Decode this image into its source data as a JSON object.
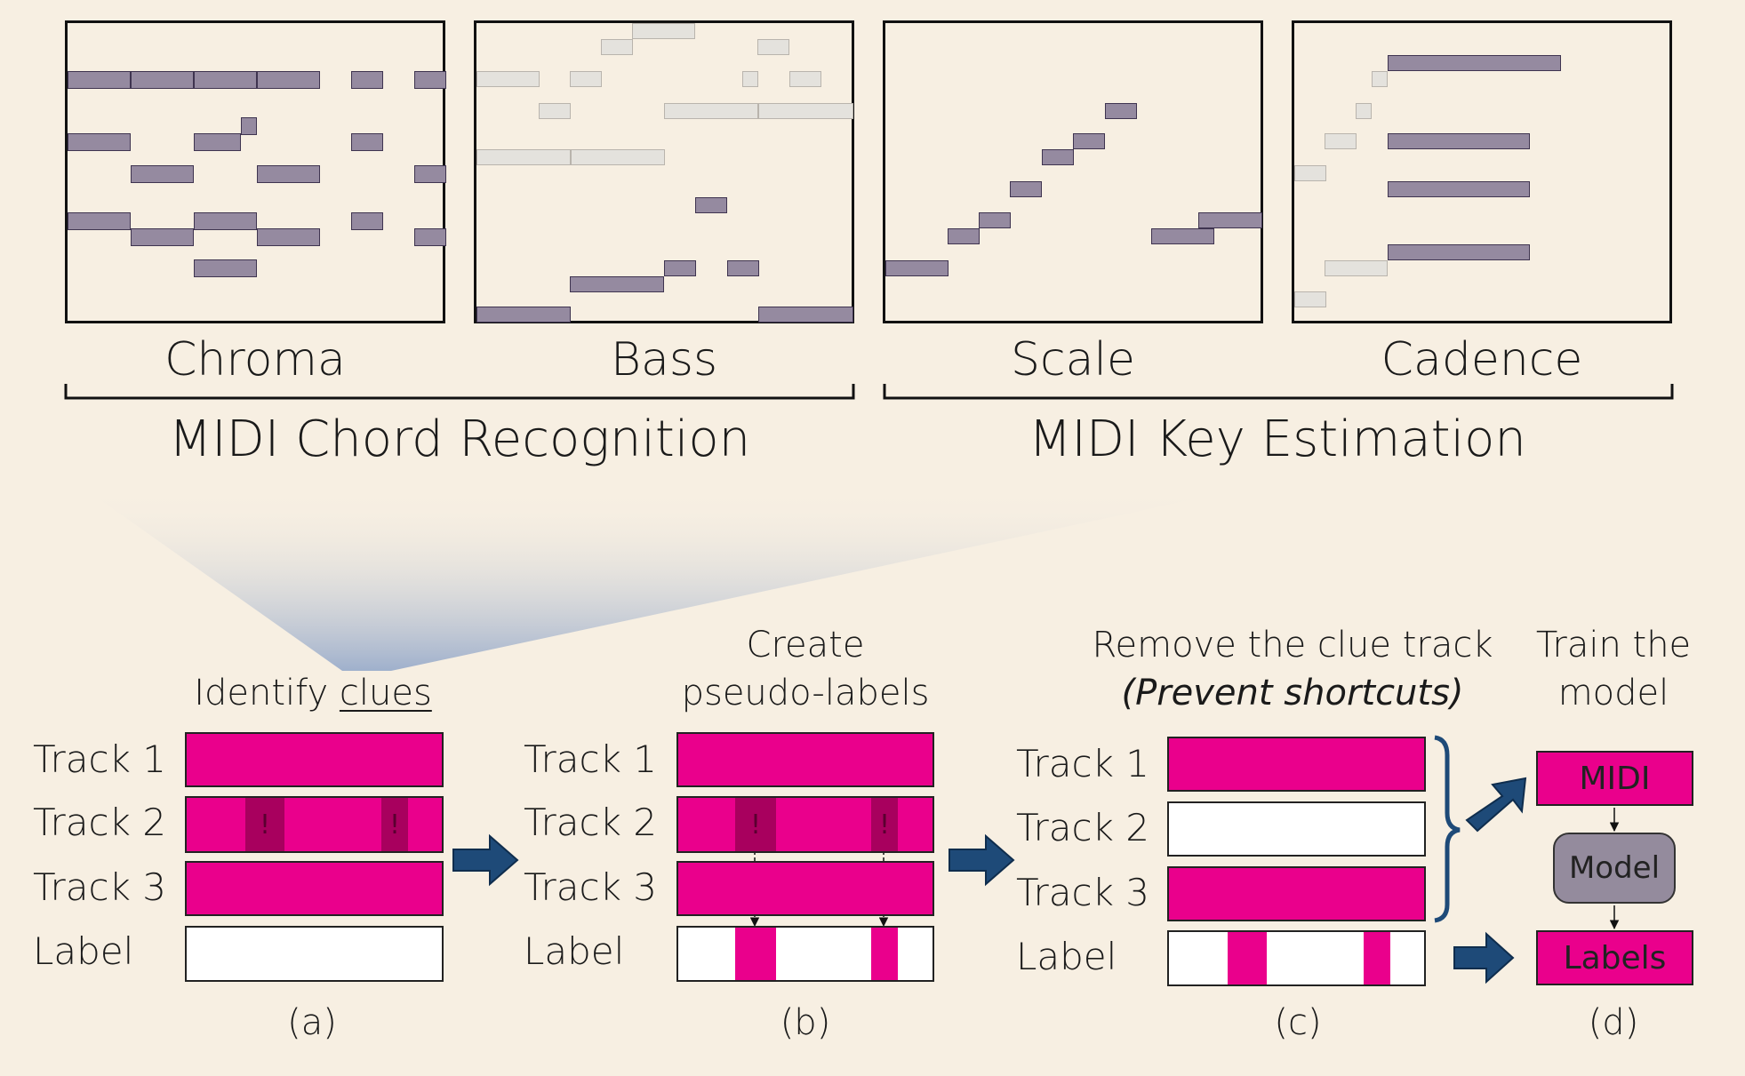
{
  "tasks": {
    "chroma": "Chroma",
    "bass": "Bass",
    "scale": "Scale",
    "cadence": "Cadence"
  },
  "groups": {
    "chord": "MIDI Chord Recognition",
    "key": "MIDI Key Estimation"
  },
  "steps": {
    "a": {
      "title": "Identify",
      "title_underlined": "clues",
      "caption": "(a)"
    },
    "b": {
      "title_line1": "Create",
      "title_line2": "pseudo-labels",
      "caption": "(b)"
    },
    "c": {
      "title_line1": "Remove the clue track",
      "title_line2": "(Prevent shortcuts)",
      "caption": "(c)"
    },
    "d": {
      "title_line1": "Train the",
      "title_line2": "model",
      "caption": "(d)"
    }
  },
  "rows": {
    "track1": "Track 1",
    "track2": "Track 2",
    "track3": "Track 3",
    "label": "Label"
  },
  "clue_mark": "!",
  "boxes": {
    "midi": "MIDI",
    "model": "Model",
    "labels": "Labels"
  },
  "colors": {
    "background": "#f7efe2",
    "track": "#ea008c",
    "clue": "#a8005e",
    "note": "#958aa0",
    "ghost_note": "#e4e2dd",
    "arrow": "#1e4a78",
    "model_box": "#948b9d"
  }
}
